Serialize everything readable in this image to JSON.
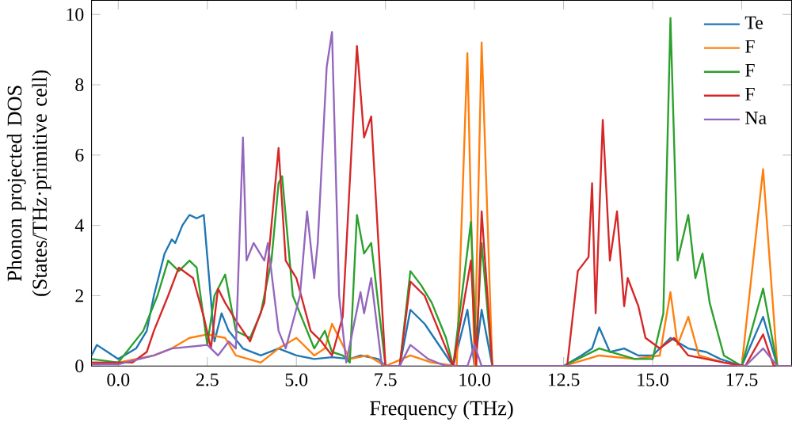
{
  "chart_data": {
    "type": "line",
    "xlabel": "Frequency (THz)",
    "ylabel": "Phonon projected DOS\n(States/THz·primitive cell)",
    "xlim": [
      -0.75,
      18.9
    ],
    "ylim": [
      0,
      10.4
    ],
    "xticks": [
      {
        "value": 0,
        "label": "0.0"
      },
      {
        "value": 2.5,
        "label": "2.5"
      },
      {
        "value": 5,
        "label": "5.0"
      },
      {
        "value": 7.5,
        "label": "7.5"
      },
      {
        "value": 10,
        "label": "10.0"
      },
      {
        "value": 12.5,
        "label": "12.5"
      },
      {
        "value": 15,
        "label": "15.0"
      },
      {
        "value": 17.5,
        "label": "17.5"
      }
    ],
    "yticks": [
      0,
      2,
      4,
      6,
      8,
      10
    ],
    "legend": "top right",
    "grid": false,
    "series": [
      {
        "name": "Te",
        "color": "#1f77b4",
        "x": [
          -0.75,
          -0.6,
          -0.3,
          0,
          0.5,
          0.8,
          1.0,
          1.3,
          1.5,
          1.6,
          1.8,
          2.0,
          2.2,
          2.4,
          2.7,
          2.9,
          3.1,
          3.5,
          4,
          4.5,
          5,
          5.5,
          6,
          6.5,
          6.8,
          7.3,
          7.5,
          7.9,
          8.2,
          8.6,
          9.0,
          9.4,
          9.8,
          10.0,
          10.2,
          10.5,
          12.5,
          13.0,
          13.3,
          13.5,
          13.8,
          14.2,
          14.6,
          15.0,
          15.5,
          16.0,
          16.5,
          16.9,
          17.5,
          18.1,
          18.5,
          18.9
        ],
        "values": [
          0.3,
          0.6,
          0.4,
          0.2,
          0.5,
          1.0,
          2.0,
          3.2,
          3.6,
          3.5,
          4.0,
          4.3,
          4.2,
          4.3,
          0.7,
          1.5,
          1.0,
          0.5,
          0.3,
          0.5,
          0.3,
          0.2,
          0.25,
          0.2,
          0.3,
          0.2,
          0,
          0,
          1.6,
          1.2,
          0.6,
          0,
          1.6,
          0,
          1.6,
          0,
          0,
          0.3,
          0.5,
          1.1,
          0.4,
          0.5,
          0.3,
          0.3,
          0.8,
          0.5,
          0.4,
          0.2,
          0,
          1.4,
          0,
          0
        ]
      },
      {
        "name": "F",
        "color": "#ff7f0e",
        "x": [
          -0.75,
          0,
          1.0,
          1.5,
          2.0,
          2.5,
          3.0,
          3.3,
          4.0,
          4.5,
          5.0,
          5.5,
          5.8,
          6.0,
          6.5,
          7.0,
          7.5,
          8.2,
          8.8,
          9.5,
          9.8,
          10.0,
          10.2,
          10.5,
          12.5,
          13.5,
          14.5,
          15.2,
          15.5,
          15.7,
          16.0,
          16.3,
          17.0,
          17.5,
          18.1,
          18.5,
          18.9
        ],
        "values": [
          0.1,
          0.1,
          0.3,
          0.5,
          0.8,
          0.9,
          0.8,
          0.3,
          0.1,
          0.5,
          0.8,
          0.3,
          0.5,
          1.2,
          0.2,
          0.3,
          0,
          0.3,
          0.1,
          0,
          8.9,
          0,
          9.2,
          0,
          0,
          0.3,
          0.2,
          0.3,
          2.1,
          0.6,
          1.4,
          0.3,
          0.1,
          0,
          5.6,
          0,
          0
        ]
      },
      {
        "name": "F",
        "color": "#2ca02c",
        "x": [
          -0.75,
          0,
          0.7,
          1.1,
          1.4,
          1.7,
          2.0,
          2.2,
          2.5,
          2.7,
          3.0,
          3.3,
          3.7,
          4.0,
          4.3,
          4.5,
          4.6,
          4.9,
          5.1,
          5.5,
          5.8,
          6.0,
          6.3,
          6.5,
          6.7,
          6.9,
          7.1,
          7.5,
          7.9,
          8.2,
          8.5,
          8.8,
          9.2,
          9.4,
          9.9,
          10.05,
          10.2,
          10.5,
          12.5,
          13.5,
          14.5,
          15.0,
          15.3,
          15.5,
          15.7,
          16.0,
          16.2,
          16.4,
          16.6,
          17.0,
          17.5,
          18.1,
          18.5,
          18.9
        ],
        "values": [
          0.2,
          0.1,
          1.0,
          2.0,
          3.0,
          2.7,
          3.0,
          2.8,
          0.6,
          2.0,
          2.6,
          1.0,
          0.8,
          1.5,
          3.0,
          5.2,
          5.4,
          2.0,
          1.5,
          0.5,
          1.0,
          0.4,
          0.3,
          0.1,
          4.3,
          3.2,
          3.5,
          0,
          0,
          2.7,
          2.3,
          1.8,
          0.8,
          0,
          4.1,
          0.5,
          3.5,
          0,
          0,
          0.5,
          0.2,
          0.2,
          1.5,
          9.9,
          3.0,
          4.3,
          2.5,
          3.2,
          1.8,
          0.3,
          0,
          2.2,
          0,
          0
        ]
      },
      {
        "name": "F",
        "color": "#d62728",
        "x": [
          -0.75,
          0.4,
          0.8,
          1.0,
          1.4,
          1.7,
          2.1,
          2.4,
          2.6,
          2.8,
          3.0,
          3.3,
          3.7,
          4.1,
          4.5,
          4.7,
          5.0,
          5.4,
          5.7,
          6.0,
          6.3,
          6.7,
          6.9,
          7.1,
          7.5,
          7.9,
          8.2,
          8.6,
          9.0,
          9.4,
          9.9,
          10.05,
          10.2,
          10.5,
          12.6,
          12.9,
          13.2,
          13.3,
          13.4,
          13.6,
          13.8,
          14.0,
          14.2,
          14.3,
          14.6,
          14.8,
          15.2,
          15.6,
          16.0,
          17.0,
          17.6,
          18.1,
          18.4,
          18.9
        ],
        "values": [
          0.1,
          0.1,
          0.4,
          1.0,
          2.0,
          2.8,
          2.5,
          1.4,
          0.5,
          2.2,
          1.8,
          1.3,
          0.7,
          1.8,
          6.2,
          3.0,
          2.5,
          1.0,
          0.7,
          0.3,
          1.4,
          9.1,
          6.5,
          7.1,
          0,
          0,
          2.4,
          2.0,
          1.0,
          0,
          3.0,
          0,
          4.4,
          0,
          0,
          2.7,
          3.1,
          5.2,
          1.5,
          7.0,
          3.0,
          4.4,
          1.7,
          2.5,
          1.7,
          0.8,
          0.5,
          0.8,
          0.3,
          0.1,
          0,
          0.9,
          0,
          0
        ]
      },
      {
        "name": "Na",
        "color": "#9467bd",
        "x": [
          -0.75,
          0,
          1.0,
          1.5,
          2.5,
          2.8,
          3.1,
          3.3,
          3.5,
          3.6,
          3.8,
          4.1,
          4.2,
          4.5,
          4.7,
          5.1,
          5.3,
          5.5,
          5.6,
          5.85,
          6.0,
          6.2,
          6.4,
          6.8,
          6.9,
          7.1,
          7.4,
          7.9,
          8.2,
          8.7,
          9.2,
          9.8,
          10.0,
          10.2,
          10.5,
          17.6,
          18.1,
          18.5,
          18.9
        ],
        "values": [
          0.05,
          0.05,
          0.3,
          0.5,
          0.6,
          0.3,
          0.7,
          0.5,
          6.5,
          3.0,
          3.5,
          3.0,
          3.5,
          1.0,
          0.5,
          2.0,
          4.4,
          2.5,
          3.5,
          8.5,
          9.5,
          2.0,
          0.1,
          2.1,
          1.5,
          2.5,
          0,
          0,
          0.6,
          0.2,
          0,
          0,
          0.6,
          0,
          0,
          0,
          0.5,
          0,
          0
        ]
      }
    ]
  }
}
